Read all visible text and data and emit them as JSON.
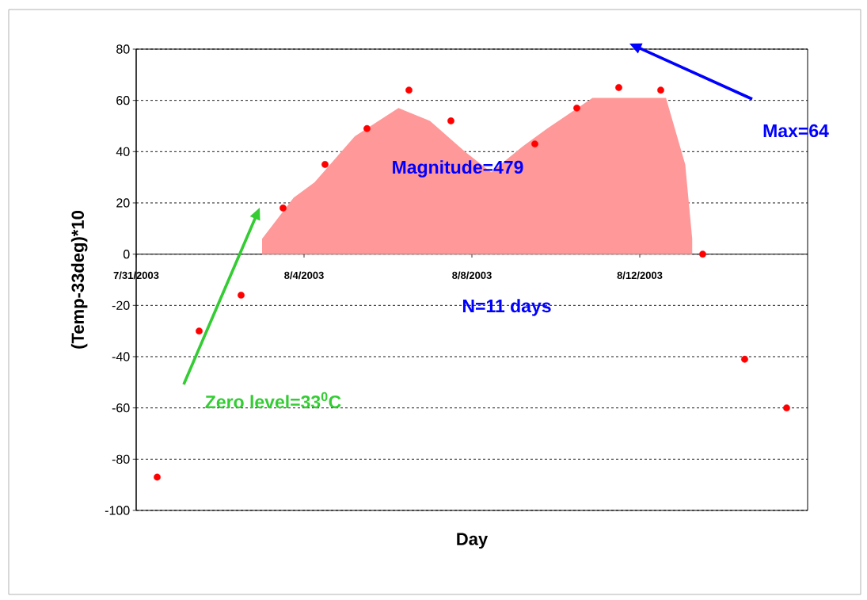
{
  "chart_data": {
    "type": "scatter",
    "xlabel": "Day",
    "ylabel": "(Temp-33deg)*10",
    "xlim": [
      "2003-07-31",
      "2003-08-16"
    ],
    "xticks": [
      {
        "value": "2003-07-31",
        "label": "7/31/2003"
      },
      {
        "value": "2003-08-04",
        "label": "8/4/2003"
      },
      {
        "value": "2003-08-08",
        "label": "8/8/2003"
      },
      {
        "value": "2003-08-12",
        "label": "8/12/2003"
      }
    ],
    "ylim": [
      -100,
      80
    ],
    "yticks": [
      -100,
      -80,
      -60,
      -40,
      -20,
      0,
      20,
      40,
      60,
      80
    ],
    "grid": "y",
    "marker": "circle",
    "series": [
      {
        "type": "area",
        "color": "#ff9999",
        "marker": "none",
        "x": [
          "2003-08-03T00:00",
          "2003-08-03T18:00",
          "2003-08-04T06:00",
          "2003-08-05T05:00",
          "2003-08-06T06:00",
          "2003-08-07T00:00",
          "2003-08-07T20:00",
          "2003-08-08T11:00",
          "2003-08-09T05:00",
          "2003-08-09T19:00",
          "2003-08-10T21:00",
          "2003-08-12T15:00",
          "2003-08-13T02:00",
          "2003-08-13T06:00"
        ],
        "values": [
          6,
          22,
          28,
          46,
          57,
          52,
          40,
          32,
          42,
          49,
          61,
          61,
          35,
          6
        ]
      },
      {
        "type": "scatter",
        "color": "#ff0000",
        "x": [
          "2003-07-31T12:00",
          "2003-08-01T12:00",
          "2003-08-02T12:00",
          "2003-08-03T12:00",
          "2003-08-04T12:00",
          "2003-08-05T12:00",
          "2003-08-06T12:00",
          "2003-08-07T12:00",
          "2003-08-09T12:00",
          "2003-08-10T12:00",
          "2003-08-11T12:00",
          "2003-08-12T12:00",
          "2003-08-13T12:00",
          "2003-08-14T12:00",
          "2003-08-15T12:00"
        ],
        "values": [
          -87,
          -30,
          -16,
          18,
          35,
          49,
          64,
          52,
          43,
          57,
          65,
          64,
          0,
          -41,
          -60
        ]
      }
    ],
    "annotations": [
      "Max=64",
      "Magnitude=479",
      "N=11 days",
      "Zero level=33$^{0}$C"
    ]
  }
}
